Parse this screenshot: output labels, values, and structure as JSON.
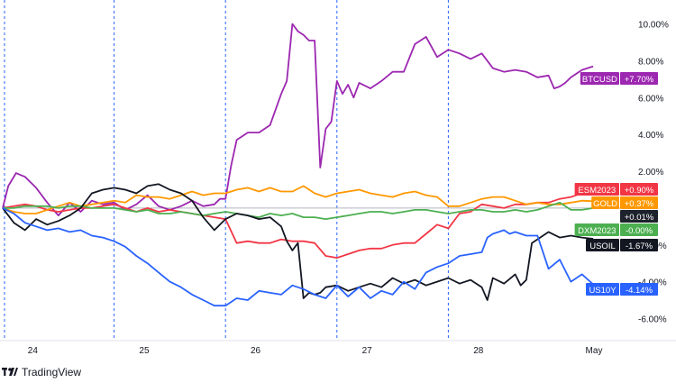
{
  "chart_data": {
    "type": "line",
    "x_ticks": [
      "24",
      "25",
      "26",
      "27",
      "28",
      "May"
    ],
    "y_ticks": [
      "10.00%",
      "8.00%",
      "6.00%",
      "4.00%",
      "2.00%",
      "-2.00%",
      "-4.00%",
      "-6.00%"
    ],
    "y_tick_values": [
      10,
      8,
      6,
      4,
      2,
      -2,
      -4,
      -6
    ],
    "ylim": [
      -7.2,
      11.3
    ],
    "x_range": [
      0,
      5.4
    ],
    "session_separators": [
      0,
      1,
      2,
      3,
      4
    ],
    "grid": false,
    "series": [
      {
        "name": "BTCUSD",
        "badge_value": "+7.70%",
        "color": "#9c27b0",
        "x": [
          0,
          0.05,
          0.12,
          0.2,
          0.3,
          0.4,
          0.5,
          0.6,
          0.7,
          0.8,
          0.9,
          1.0,
          1.1,
          1.2,
          1.3,
          1.4,
          1.5,
          1.6,
          1.7,
          1.8,
          1.9,
          1.95,
          2.0,
          2.05,
          2.1,
          2.15,
          2.2,
          2.3,
          2.4,
          2.5,
          2.55,
          2.6,
          2.65,
          2.7,
          2.75,
          2.8,
          2.85,
          2.9,
          2.95,
          3.0,
          3.05,
          3.1,
          3.15,
          3.2,
          3.3,
          3.4,
          3.5,
          3.6,
          3.7,
          3.75,
          3.8,
          3.9,
          4.0,
          4.1,
          4.2,
          4.3,
          4.4,
          4.5,
          4.6,
          4.7,
          4.8,
          4.9,
          4.95,
          5.0,
          5.05,
          5.1,
          5.2,
          5.3
        ],
        "y": [
          0,
          1.2,
          1.9,
          1.7,
          1.1,
          0.3,
          -0.4,
          0.3,
          -0.2,
          0.4,
          0.2,
          0.3,
          -0.1,
          0.2,
          0.7,
          0.1,
          -0.1,
          0.1,
          0.4,
          0.1,
          0.2,
          0.5,
          0.5,
          2.3,
          3.7,
          3.9,
          4.1,
          4.1,
          4.5,
          6.2,
          6.9,
          10.0,
          9.6,
          9.4,
          9.1,
          9.1,
          2.2,
          4.3,
          4.7,
          6.9,
          6.2,
          6.7,
          6.0,
          6.8,
          6.5,
          6.9,
          7.4,
          7.4,
          8.9,
          9.1,
          9.3,
          8.2,
          8.6,
          8.4,
          8.1,
          8.4,
          7.6,
          7.4,
          7.5,
          7.4,
          7.1,
          7.2,
          6.5,
          6.6,
          6.8,
          7.1,
          7.5,
          7.7
        ]
      },
      {
        "name": "ESM2023",
        "badge_value": "+0.90%",
        "color": "#f23645",
        "x": [
          0,
          0.1,
          0.2,
          0.3,
          0.4,
          0.5,
          0.6,
          0.7,
          0.8,
          0.9,
          1.0,
          1.1,
          1.2,
          1.3,
          1.4,
          1.5,
          1.6,
          1.7,
          1.8,
          1.9,
          2.0,
          2.1,
          2.2,
          2.3,
          2.4,
          2.5,
          2.6,
          2.7,
          2.8,
          2.9,
          3.0,
          3.1,
          3.2,
          3.3,
          3.4,
          3.5,
          3.6,
          3.7,
          3.8,
          3.9,
          4.0,
          4.1,
          4.2,
          4.3,
          4.4,
          4.5,
          4.6,
          4.7,
          4.8,
          4.9,
          5.0,
          5.1,
          5.2,
          5.3
        ],
        "y": [
          0,
          0.1,
          0.2,
          0.1,
          -0.1,
          -0.2,
          -0.1,
          0.0,
          0.0,
          0.1,
          0.2,
          0.0,
          -0.2,
          0.0,
          -0.2,
          -0.1,
          -0.2,
          -0.3,
          -0.4,
          -0.5,
          -0.6,
          -1.9,
          -1.8,
          -1.9,
          -1.9,
          -1.7,
          -1.8,
          -1.8,
          -1.9,
          -2.6,
          -2.7,
          -2.5,
          -2.3,
          -2.2,
          -2.2,
          -2.0,
          -1.9,
          -1.9,
          -1.4,
          -0.9,
          -1.1,
          -0.3,
          -0.2,
          0.2,
          0.1,
          0.0,
          0.2,
          0.2,
          0.3,
          0.3,
          0.5,
          0.6,
          0.8,
          0.9
        ]
      },
      {
        "name": "GOLD",
        "badge_value": "+0.37%",
        "color": "#ff9800",
        "x": [
          0,
          0.1,
          0.2,
          0.3,
          0.4,
          0.5,
          0.6,
          0.7,
          0.8,
          0.9,
          1.0,
          1.1,
          1.2,
          1.3,
          1.4,
          1.5,
          1.6,
          1.7,
          1.8,
          1.9,
          2.0,
          2.1,
          2.2,
          2.3,
          2.4,
          2.5,
          2.6,
          2.7,
          2.8,
          2.9,
          3.0,
          3.1,
          3.2,
          3.3,
          3.4,
          3.5,
          3.6,
          3.7,
          3.8,
          3.9,
          4.0,
          4.1,
          4.2,
          4.3,
          4.4,
          4.5,
          4.6,
          4.7,
          4.8,
          4.9,
          5.0,
          5.1,
          5.2,
          5.3
        ],
        "y": [
          0,
          -0.2,
          -0.3,
          -0.3,
          -0.1,
          0.1,
          0.3,
          0.1,
          0.2,
          0.3,
          0.4,
          0.3,
          0.7,
          0.6,
          0.6,
          0.5,
          0.7,
          0.9,
          0.7,
          0.8,
          0.8,
          1.0,
          1.1,
          0.9,
          1.1,
          0.9,
          0.9,
          1.2,
          0.8,
          0.6,
          0.8,
          0.9,
          1.0,
          0.8,
          0.7,
          0.6,
          0.8,
          0.9,
          0.7,
          0.6,
          0.1,
          0.1,
          0.3,
          0.5,
          0.6,
          0.6,
          0.4,
          0.2,
          0.3,
          0.2,
          0.2,
          0.3,
          0.4,
          0.37
        ]
      },
      {
        "name": "DXM2023",
        "badge_value": "-0.00%",
        "color": "#4caf50",
        "x": [
          0,
          0.1,
          0.2,
          0.3,
          0.4,
          0.5,
          0.6,
          0.7,
          0.8,
          0.9,
          1.0,
          1.1,
          1.2,
          1.3,
          1.4,
          1.5,
          1.6,
          1.7,
          1.8,
          1.9,
          2.0,
          2.1,
          2.2,
          2.3,
          2.4,
          2.5,
          2.6,
          2.7,
          2.8,
          2.9,
          3.0,
          3.1,
          3.2,
          3.3,
          3.4,
          3.5,
          3.6,
          3.7,
          3.8,
          3.9,
          4.0,
          4.1,
          4.2,
          4.3,
          4.4,
          4.5,
          4.6,
          4.7,
          4.8,
          4.9,
          5.0,
          5.1,
          5.2,
          5.3
        ],
        "y": [
          0,
          0.0,
          0.1,
          0.1,
          0.1,
          0.0,
          0.1,
          0.1,
          0.0,
          0.0,
          0.0,
          -0.1,
          -0.2,
          -0.1,
          -0.3,
          -0.3,
          -0.2,
          -0.3,
          -0.4,
          -0.3,
          -0.2,
          -0.3,
          -0.4,
          -0.5,
          -0.3,
          -0.4,
          -0.3,
          -0.5,
          -0.5,
          -0.6,
          -0.5,
          -0.4,
          -0.3,
          -0.2,
          -0.2,
          -0.3,
          -0.2,
          -0.1,
          -0.1,
          -0.2,
          -0.3,
          -0.2,
          -0.1,
          -0.1,
          -0.2,
          -0.2,
          -0.1,
          -0.2,
          -0.1,
          0.1,
          0.3,
          -0.1,
          -0.1,
          0.0
        ]
      },
      {
        "name": "USOIL",
        "badge_value": "-1.67%",
        "color": "#131722",
        "x": [
          0,
          0.1,
          0.2,
          0.3,
          0.4,
          0.5,
          0.6,
          0.7,
          0.8,
          0.9,
          1.0,
          1.1,
          1.2,
          1.3,
          1.4,
          1.5,
          1.6,
          1.7,
          1.8,
          1.9,
          2.0,
          2.1,
          2.2,
          2.3,
          2.4,
          2.5,
          2.55,
          2.6,
          2.65,
          2.7,
          2.75,
          2.8,
          2.85,
          2.9,
          3.0,
          3.1,
          3.2,
          3.3,
          3.4,
          3.5,
          3.6,
          3.7,
          3.8,
          3.9,
          4.0,
          4.1,
          4.2,
          4.3,
          4.35,
          4.4,
          4.5,
          4.6,
          4.65,
          4.7,
          4.75,
          4.8,
          4.9,
          5.0,
          5.1,
          5.2,
          5.3
        ],
        "y": [
          0,
          -0.8,
          -1.2,
          -0.6,
          -0.9,
          -0.7,
          -0.4,
          0.0,
          0.8,
          1.0,
          1.1,
          1.0,
          0.8,
          1.2,
          1.3,
          1.0,
          0.8,
          0.4,
          -0.5,
          -1.2,
          -0.6,
          -0.3,
          -0.4,
          -0.6,
          -0.5,
          -1.0,
          -1.8,
          -2.3,
          -1.9,
          -4.9,
          -4.6,
          -4.7,
          -4.6,
          -4.3,
          -4.2,
          -4.5,
          -4.3,
          -4.1,
          -4.3,
          -3.8,
          -4.1,
          -3.9,
          -4.2,
          -4.0,
          -3.8,
          -4.1,
          -3.9,
          -4.3,
          -5.0,
          -3.8,
          -4.1,
          -3.6,
          -4.2,
          -3.9,
          -1.9,
          -1.7,
          -1.3,
          -1.6,
          -1.5,
          -1.6,
          -1.67
        ]
      },
      {
        "name": "US10Y",
        "badge_value": "-4.14%",
        "color": "#2962ff",
        "x": [
          0,
          0.1,
          0.2,
          0.3,
          0.4,
          0.5,
          0.6,
          0.7,
          0.8,
          0.9,
          1.0,
          1.1,
          1.2,
          1.3,
          1.4,
          1.5,
          1.6,
          1.7,
          1.8,
          1.9,
          2.0,
          2.1,
          2.2,
          2.3,
          2.4,
          2.5,
          2.6,
          2.7,
          2.8,
          2.9,
          3.0,
          3.1,
          3.2,
          3.3,
          3.4,
          3.5,
          3.6,
          3.7,
          3.8,
          3.9,
          4.0,
          4.1,
          4.2,
          4.3,
          4.35,
          4.4,
          4.5,
          4.55,
          4.6,
          4.7,
          4.8,
          4.9,
          5.0,
          5.1,
          5.2,
          5.3
        ],
        "y": [
          0,
          -0.3,
          -0.8,
          -1.0,
          -1.2,
          -1.1,
          -1.3,
          -1.2,
          -1.5,
          -1.6,
          -1.8,
          -2.1,
          -2.6,
          -3.0,
          -3.5,
          -4.0,
          -4.3,
          -4.7,
          -5.0,
          -5.3,
          -5.3,
          -4.9,
          -5.0,
          -4.5,
          -4.6,
          -4.7,
          -4.2,
          -4.4,
          -4.7,
          -4.9,
          -4.2,
          -4.8,
          -4.3,
          -4.9,
          -4.5,
          -4.7,
          -4.0,
          -4.4,
          -3.5,
          -3.2,
          -3.0,
          -2.6,
          -2.5,
          -2.4,
          -1.6,
          -1.4,
          -1.2,
          -1.4,
          -1.3,
          -1.5,
          -1.5,
          -3.3,
          -2.8,
          -4.0,
          -3.6,
          -4.14
        ]
      }
    ],
    "reference": {
      "label": "+0.01%",
      "value": 0.0
    }
  },
  "branding": {
    "name": "TradingView"
  },
  "colors": {
    "axis_text": "#131722",
    "separator": "#2962ff",
    "reference_line": "#b2b5be"
  }
}
